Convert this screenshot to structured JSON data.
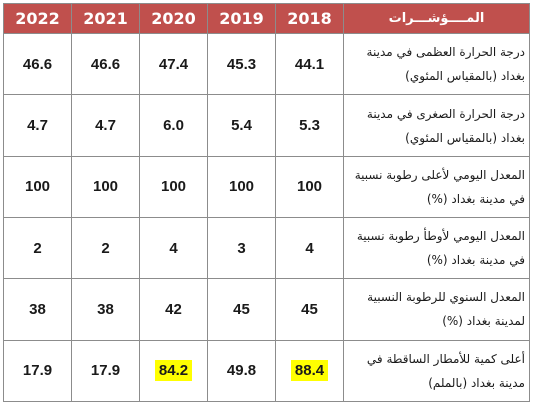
{
  "table": {
    "header": {
      "label": "المــــؤشـــرات",
      "years": [
        "2018",
        "2019",
        "2020",
        "2021",
        "2022"
      ]
    },
    "rows": [
      {
        "label": "درجة الحرارة العظمى في مدينة بغداد (بالمقياس المئوي)",
        "values": [
          "44.1",
          "45.3",
          "47.4",
          "46.6",
          "46.6"
        ]
      },
      {
        "label": "درجة الحرارة الصغرى في مدينة بغداد (بالمقياس المئوي)",
        "values": [
          "5.3",
          "5.4",
          "6.0",
          "4.7",
          "4.7"
        ]
      },
      {
        "label": "المعدل اليومي لأعلى رطوبة نسبية في مدينة بغداد (%)",
        "values": [
          "100",
          "100",
          "100",
          "100",
          "100"
        ]
      },
      {
        "label": "المعدل اليومي لأوطأ رطوبة نسبية في مدينة بغداد (%)",
        "values": [
          "4",
          "3",
          "4",
          "2",
          "2"
        ]
      },
      {
        "label": "المعدل السنوي للرطوبة النسبية لمدينة بغداد (%)",
        "values": [
          "45",
          "45",
          "42",
          "38",
          "38"
        ]
      },
      {
        "label": "أعلى كمية للأمطار الساقطة في مدينة بغداد (بالملم)",
        "values": [
          "88.4",
          "49.8",
          "84.2",
          "17.9",
          "17.9"
        ]
      }
    ],
    "highlighted_cells": [
      "88.4 (2018)",
      "84.2 (2020)"
    ]
  },
  "colors": {
    "header_background": "#c0504d",
    "header_text": "#ffffff",
    "highlight": "#ffff00",
    "border": "#8c8c8c"
  }
}
